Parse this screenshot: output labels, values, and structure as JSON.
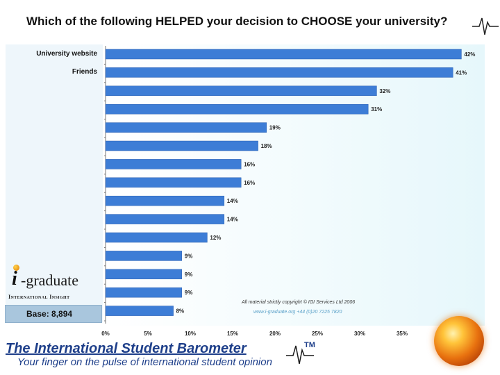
{
  "header": {
    "title": "Which of the following HELPED your decision to CHOOSE your university?"
  },
  "sidebar": {
    "logo_text": "i-graduate",
    "logo_letter": "i",
    "logo_rest": "-graduate",
    "logo_subtitle": "International Insight",
    "base_label": "Base: 8,894"
  },
  "chart_data": {
    "type": "bar",
    "orientation": "horizontal",
    "title": "Which of the following HELPED your decision to CHOOSE your university?",
    "categories": [
      "University website",
      "Friends",
      "",
      "",
      "",
      "",
      "",
      "",
      "",
      "",
      "",
      "",
      "",
      "",
      ""
    ],
    "values": [
      42,
      41,
      32,
      31,
      19,
      18,
      16,
      16,
      14,
      14,
      12,
      9,
      9,
      9,
      8
    ],
    "value_labels": [
      "42%",
      "41%",
      "32%",
      "31%",
      "19%",
      "18%",
      "16%",
      "16%",
      "14%",
      "14%",
      "12%",
      "9%",
      "9%",
      "9%",
      "8%"
    ],
    "x_ticks": [
      "0%",
      "5%",
      "10%",
      "15%",
      "20%",
      "25%",
      "30%",
      "35%"
    ],
    "xlim": [
      0,
      45
    ],
    "bar_color": "#3d7dd6",
    "grid": false
  },
  "notes": {
    "copyright": "All material strictly copyright © IGI Services Ltd 2006",
    "url": "www.i-graduate.org  +44 (0)20 7225 7820"
  },
  "footer": {
    "title": "The International Student Barometer",
    "tm": "TM",
    "subtitle": "Your finger on the pulse of international student opinion",
    "accent_color": "#1e3f8a"
  }
}
